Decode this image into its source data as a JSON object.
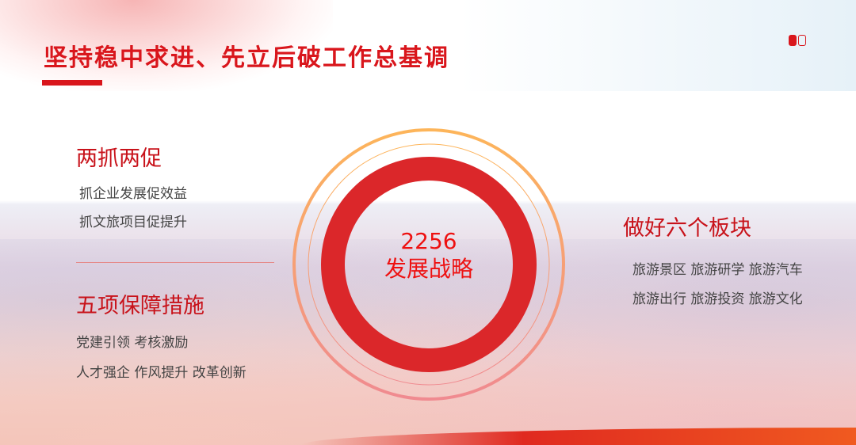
{
  "title": "坚持稳中求进、先立后破工作总基调",
  "center": {
    "number": "2256",
    "label": "发展战略"
  },
  "left_top": {
    "heading": "两抓两促",
    "items": [
      "抓企业发展促效益",
      "抓文旅项目促提升"
    ]
  },
  "left_bottom": {
    "heading": "五项保障措施",
    "items": [
      "党建引领 考核激励",
      "人才强企 作风提升 改革创新"
    ]
  },
  "right": {
    "heading": "做好六个板块",
    "items": [
      "旅游景区 旅游研学 旅游汽车",
      "旅游出行 旅游投资 旅游文化"
    ]
  },
  "colors": {
    "accent": "#d9161c",
    "ring": "#db272a",
    "outer_ring_top": "#fdb55a",
    "outer_ring_bottom": "#f08a90"
  }
}
